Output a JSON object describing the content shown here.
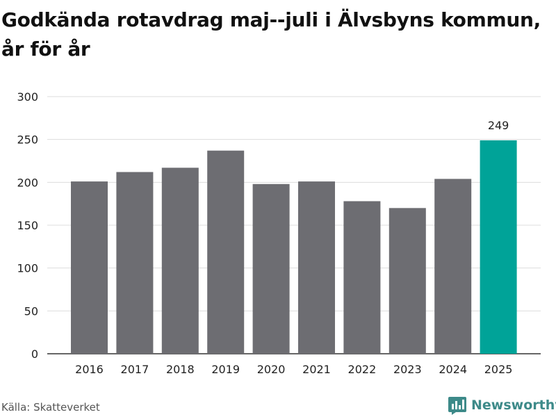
{
  "title": "Godkända rotavdrag maj--juli i Älvsbyns kommun, år för år",
  "source": "Källa: Skatteverket",
  "brand": {
    "name": "Newsworthy",
    "icon": "newsworthy-logo-icon",
    "color": "#3d8a89"
  },
  "chart_data": {
    "type": "bar",
    "title": "Godkända rotavdrag maj--juli i Älvsbyns kommun, år för år",
    "xlabel": "",
    "ylabel": "",
    "categories": [
      "2016",
      "2017",
      "2018",
      "2019",
      "2020",
      "2021",
      "2022",
      "2023",
      "2024",
      "2025"
    ],
    "values": [
      201,
      212,
      217,
      237,
      198,
      201,
      178,
      170,
      204,
      249
    ],
    "ylim": [
      0,
      300
    ],
    "yticks": [
      "0",
      "50",
      "100",
      "150",
      "200",
      "250",
      "300"
    ],
    "grid": true,
    "highlight": {
      "category": "2025",
      "label": "249"
    },
    "colors": {
      "bar": "#6d6d72",
      "highlight": "#00a398",
      "grid": "#dddddd",
      "axis": "#333333"
    }
  }
}
